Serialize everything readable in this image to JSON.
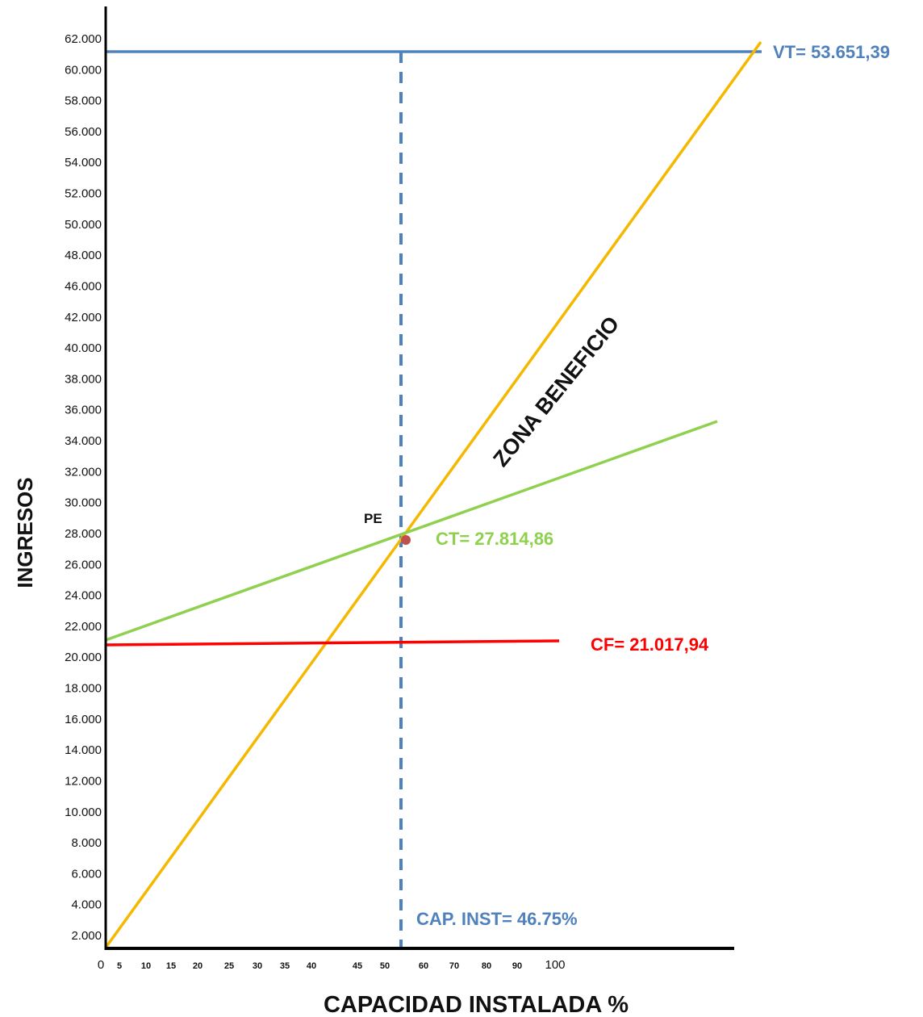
{
  "chart_data": {
    "type": "line",
    "xlabel": "CAPACIDAD INSTALADA %",
    "ylabel": "INGRESOS",
    "y_ticks": [
      "2.000",
      "4.000",
      "6.000",
      "8.000",
      "10.000",
      "12.000",
      "14.000",
      "16.000",
      "18.000",
      "20.000",
      "22.000",
      "24.000",
      "26.000",
      "28.000",
      "30.000",
      "32.000",
      "34.000",
      "36.000",
      "38.000",
      "40.000",
      "42.000",
      "46.000",
      "48.000",
      "50.000",
      "52.000",
      "54.000",
      "56.000",
      "58.000",
      "60.000",
      "62.000"
    ],
    "x_ticks": [
      "0",
      "5",
      "10",
      "15",
      "20",
      "25",
      "30",
      "35",
      "40",
      "45",
      "50",
      "60",
      "70",
      "80",
      "90",
      "100"
    ],
    "series": [
      {
        "name": "VT= 53.651,39",
        "color": "#f5b800",
        "points": [
          [
            1,
            1500
          ],
          [
            116,
            62000
          ]
        ]
      },
      {
        "name": "CT= 27.814,86",
        "color": "#8fd14f",
        "points": [
          [
            1,
            21000
          ],
          [
            108,
            35300
          ]
        ]
      },
      {
        "name": "CF= 21.017,94",
        "color": "#ff0000",
        "points": [
          [
            1,
            20900
          ],
          [
            90,
            21100
          ]
        ]
      }
    ],
    "reference_lines": {
      "horizontal": {
        "y": 61200,
        "color": "#4f81bd"
      },
      "vertical": {
        "x": 46.75,
        "color": "#4f81bd",
        "style": "dashed"
      }
    },
    "point": {
      "label": "PE",
      "x": 46.75,
      "y": 27800,
      "color": "#c0504d"
    },
    "annotations": {
      "vt": "VT= 53.651,39",
      "ct": "CT= 27.814,86",
      "cf": "CF= 21.017,94",
      "cap": "CAP. INST=  46.75%",
      "zone": "ZONA BENEFICIO",
      "pe": "PE"
    },
    "grid": false
  }
}
